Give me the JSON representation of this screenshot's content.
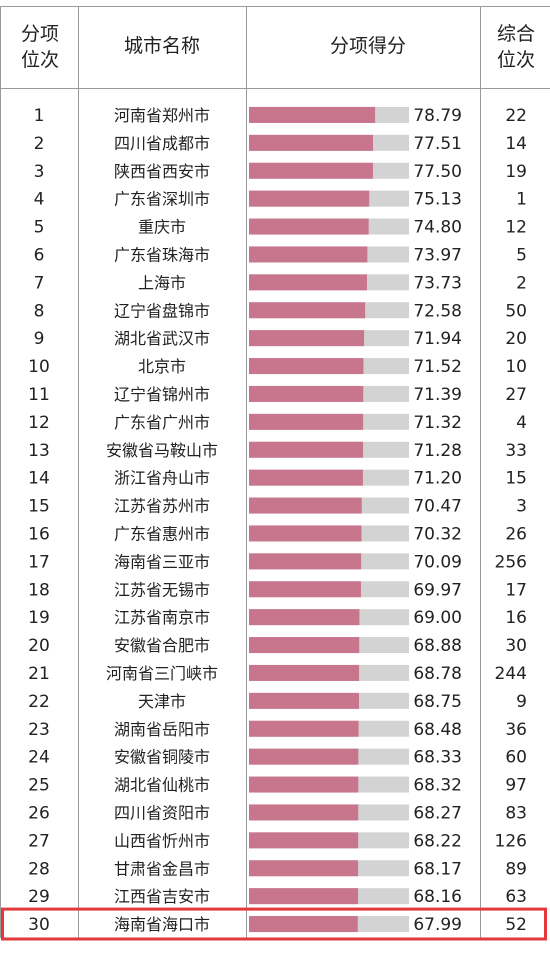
{
  "header": {
    "rank_line1": "分项",
    "rank_line2": "位次",
    "city": "城市名称",
    "score": "分项得分",
    "overall_line1": "综合",
    "overall_line2": "位次"
  },
  "colors": {
    "bar": "#c8768e",
    "track": "#d3d3d3",
    "highlight": "#e23a3a",
    "grid": "#9a9a9a"
  },
  "chart_data": {
    "type": "bar",
    "orientation": "horizontal",
    "title": "",
    "xlabel": "",
    "ylabel": "",
    "xlim": [
      0,
      100
    ],
    "grid": false,
    "highlight_rank": 30,
    "rows": [
      {
        "rank": "1",
        "city": "河南省郑州市",
        "score": "78.79",
        "overall": "22"
      },
      {
        "rank": "2",
        "city": "四川省成都市",
        "score": "77.51",
        "overall": "14"
      },
      {
        "rank": "3",
        "city": "陕西省西安市",
        "score": "77.50",
        "overall": "19"
      },
      {
        "rank": "4",
        "city": "广东省深圳市",
        "score": "75.13",
        "overall": "1"
      },
      {
        "rank": "5",
        "city": "重庆市",
        "score": "74.80",
        "overall": "12"
      },
      {
        "rank": "6",
        "city": "广东省珠海市",
        "score": "73.97",
        "overall": "5"
      },
      {
        "rank": "7",
        "city": "上海市",
        "score": "73.73",
        "overall": "2"
      },
      {
        "rank": "8",
        "city": "辽宁省盘锦市",
        "score": "72.58",
        "overall": "50"
      },
      {
        "rank": "9",
        "city": "湖北省武汉市",
        "score": "71.94",
        "overall": "20"
      },
      {
        "rank": "10",
        "city": "北京市",
        "score": "71.52",
        "overall": "10"
      },
      {
        "rank": "11",
        "city": "辽宁省锦州市",
        "score": "71.39",
        "overall": "27"
      },
      {
        "rank": "12",
        "city": "广东省广州市",
        "score": "71.32",
        "overall": "4"
      },
      {
        "rank": "13",
        "city": "安徽省马鞍山市",
        "score": "71.28",
        "overall": "33"
      },
      {
        "rank": "14",
        "city": "浙江省舟山市",
        "score": "71.20",
        "overall": "15"
      },
      {
        "rank": "15",
        "city": "江苏省苏州市",
        "score": "70.47",
        "overall": "3"
      },
      {
        "rank": "16",
        "city": "广东省惠州市",
        "score": "70.32",
        "overall": "26"
      },
      {
        "rank": "17",
        "city": "海南省三亚市",
        "score": "70.09",
        "overall": "256"
      },
      {
        "rank": "18",
        "city": "江苏省无锡市",
        "score": "69.97",
        "overall": "17"
      },
      {
        "rank": "19",
        "city": "江苏省南京市",
        "score": "69.00",
        "overall": "16"
      },
      {
        "rank": "20",
        "city": "安徽省合肥市",
        "score": "68.88",
        "overall": "30"
      },
      {
        "rank": "21",
        "city": "河南省三门峡市",
        "score": "68.78",
        "overall": "244"
      },
      {
        "rank": "22",
        "city": "天津市",
        "score": "68.75",
        "overall": "9"
      },
      {
        "rank": "23",
        "city": "湖南省岳阳市",
        "score": "68.48",
        "overall": "36"
      },
      {
        "rank": "24",
        "city": "安徽省铜陵市",
        "score": "68.33",
        "overall": "60"
      },
      {
        "rank": "25",
        "city": "湖北省仙桃市",
        "score": "68.32",
        "overall": "97"
      },
      {
        "rank": "26",
        "city": "四川省资阳市",
        "score": "68.27",
        "overall": "83"
      },
      {
        "rank": "27",
        "city": "山西省忻州市",
        "score": "68.22",
        "overall": "126"
      },
      {
        "rank": "28",
        "city": "甘肃省金昌市",
        "score": "68.17",
        "overall": "89"
      },
      {
        "rank": "29",
        "city": "江西省吉安市",
        "score": "68.16",
        "overall": "63"
      },
      {
        "rank": "30",
        "city": "海南省海口市",
        "score": "67.99",
        "overall": "52"
      }
    ]
  }
}
